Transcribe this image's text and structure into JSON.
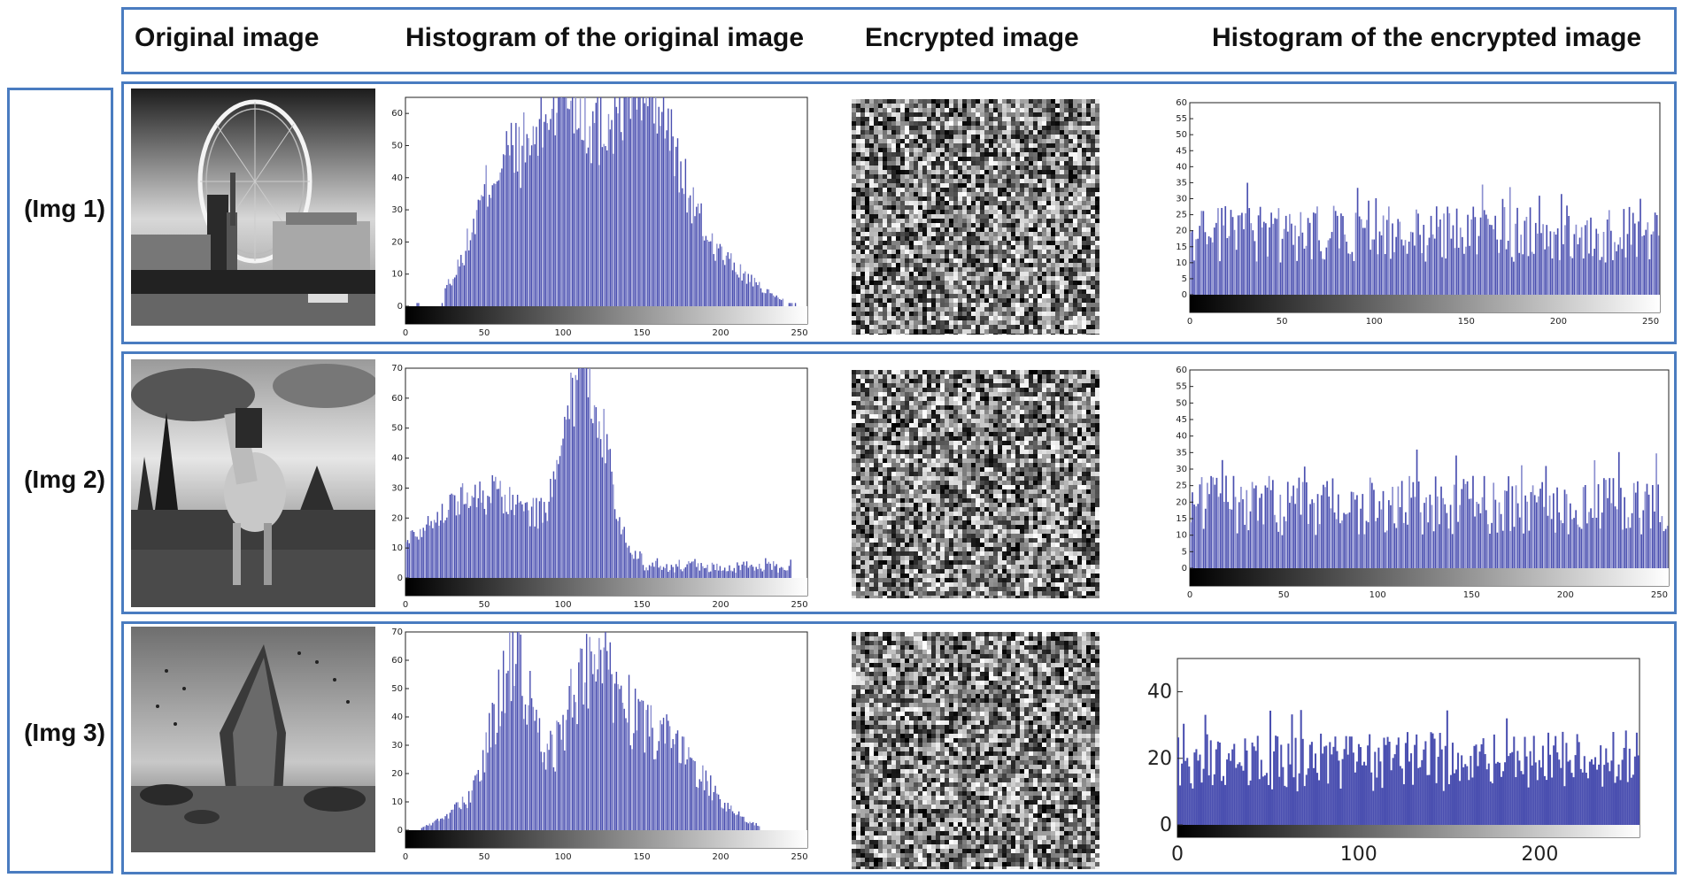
{
  "header": {
    "col1": "Original image",
    "col2": "Histogram of the original image",
    "col3": "Encrypted image",
    "col4": "Histogram of the encrypted image"
  },
  "rows": [
    {
      "label": "(Img 1)",
      "photo": "london-eye-photo"
    },
    {
      "label": "(Img 2)",
      "photo": "horse-photo"
    },
    {
      "label": "(Img 3)",
      "photo": "shipwreck-photo"
    }
  ],
  "colors": {
    "frame": "#4a7cc0",
    "bar": "#4a4fb0",
    "bar_light": "#8b8fd0"
  },
  "chart_data": [
    {
      "type": "bar",
      "title": "Histogram of the original image (Img 1)",
      "xlim": [
        0,
        255
      ],
      "ylim": [
        0,
        65
      ],
      "xticks": [
        0,
        50,
        100,
        150,
        200,
        250
      ],
      "yticks": [
        0,
        10,
        20,
        30,
        40,
        50,
        60
      ],
      "shape": "orig1"
    },
    {
      "type": "bar",
      "title": "Histogram of the encrypted image (Img 1)",
      "xlim": [
        0,
        255
      ],
      "ylim": [
        0,
        60
      ],
      "xticks": [
        0,
        50,
        100,
        150,
        200,
        250
      ],
      "yticks": [
        0,
        5,
        10,
        15,
        20,
        25,
        30,
        35,
        40,
        45,
        50,
        55,
        60
      ],
      "shape": "enc"
    },
    {
      "type": "bar",
      "title": "Histogram of the original image (Img 2)",
      "xlim": [
        0,
        255
      ],
      "ylim": [
        0,
        70
      ],
      "xticks": [
        0,
        50,
        100,
        150,
        200,
        250
      ],
      "yticks": [
        0,
        10,
        20,
        30,
        40,
        50,
        60,
        70
      ],
      "shape": "orig2"
    },
    {
      "type": "bar",
      "title": "Histogram of the encrypted image (Img 2)",
      "xlim": [
        0,
        255
      ],
      "ylim": [
        0,
        60
      ],
      "xticks": [
        0,
        50,
        100,
        150,
        200,
        250
      ],
      "yticks": [
        0,
        5,
        10,
        15,
        20,
        25,
        30,
        35,
        40,
        45,
        50,
        55,
        60
      ],
      "shape": "enc"
    },
    {
      "type": "bar",
      "title": "Histogram of the original image (Img 3)",
      "xlim": [
        0,
        255
      ],
      "ylim": [
        0,
        70
      ],
      "xticks": [
        0,
        50,
        100,
        150,
        200,
        250
      ],
      "yticks": [
        0,
        10,
        20,
        30,
        40,
        50,
        60,
        70
      ],
      "shape": "orig3"
    },
    {
      "type": "bar",
      "title": "Histogram of the encrypted image (Img 3)",
      "xlim": [
        0,
        255
      ],
      "ylim": [
        0,
        50
      ],
      "xticks": [
        0,
        100,
        200
      ],
      "yticks": [
        0,
        20,
        40
      ],
      "shape": "enc3"
    }
  ]
}
